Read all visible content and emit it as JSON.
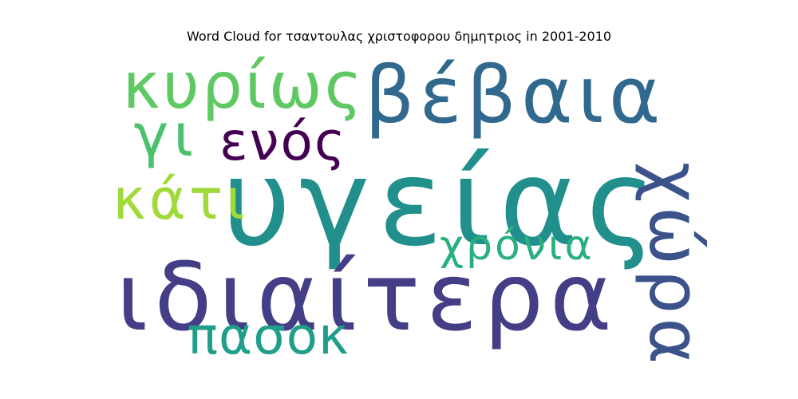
{
  "chart_data": {
    "type": "wordcloud",
    "title": "Word Cloud for τσαντουλας χριστοφορου δημητριος in 2001-2010",
    "words": [
      {
        "text": "υγείας",
        "weight": 1.0,
        "color": "#21908d",
        "orientation": "horizontal"
      },
      {
        "text": "ιδιαίτερα",
        "weight": 0.8,
        "color": "#433e85",
        "orientation": "horizontal"
      },
      {
        "text": "βέβαια",
        "weight": 0.7,
        "color": "#31688e",
        "orientation": "horizontal"
      },
      {
        "text": "χώρα",
        "weight": 0.55,
        "color": "#3b528b",
        "orientation": "vertical"
      },
      {
        "text": "κυρίως",
        "weight": 0.5,
        "color": "#5ec962",
        "orientation": "horizontal"
      },
      {
        "text": "πασοκ",
        "weight": 0.45,
        "color": "#1f9e89",
        "orientation": "horizontal"
      },
      {
        "text": "κάτι",
        "weight": 0.45,
        "color": "#a0da39",
        "orientation": "horizontal"
      },
      {
        "text": "ενός",
        "weight": 0.42,
        "color": "#440154",
        "orientation": "horizontal"
      },
      {
        "text": "γι",
        "weight": 0.42,
        "color": "#4ac16d",
        "orientation": "horizontal"
      },
      {
        "text": "χρόνια",
        "weight": 0.35,
        "color": "#2ab07f",
        "orientation": "horizontal"
      }
    ]
  }
}
